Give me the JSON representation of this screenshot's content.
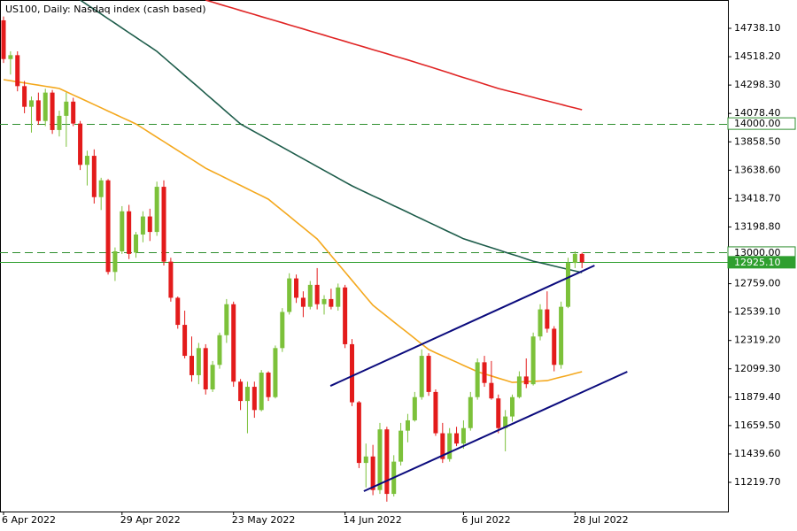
{
  "chart_data": {
    "type": "candlestick",
    "title": "US100, Daily:  Nasdaq index (cash based)",
    "categories": [
      "6 Apr 2022",
      null,
      null,
      null,
      null,
      null,
      null,
      null,
      null,
      null,
      null,
      null,
      null,
      null,
      null,
      null,
      null,
      "29 Apr 2022",
      null,
      null,
      null,
      null,
      null,
      null,
      null,
      null,
      null,
      null,
      null,
      null,
      null,
      null,
      null,
      "23 May 2022",
      null,
      null,
      null,
      null,
      null,
      null,
      null,
      null,
      null,
      null,
      null,
      null,
      null,
      null,
      null,
      "14 Jun 2022",
      null,
      null,
      null,
      null,
      null,
      null,
      null,
      null,
      null,
      null,
      null,
      null,
      null,
      null,
      null,
      null,
      "6 Jul 2022",
      null,
      null,
      null,
      null,
      null,
      null,
      null,
      null,
      null,
      null,
      null,
      null,
      null,
      null,
      null,
      "28 Jul 2022",
      null
    ],
    "open": [
      14800,
      14500,
      14530,
      14290,
      14130,
      14180,
      14020,
      14240,
      13950,
      14060,
      14170,
      14000,
      13680,
      13750,
      13430,
      13560,
      12850,
      13010,
      13320,
      13000,
      13140,
      13280,
      13160,
      13510,
      12930,
      12650,
      12440,
      12200,
      12050,
      12260,
      11940,
      12130,
      12360,
      12600,
      12000,
      11850,
      11960,
      11780,
      12070,
      11880,
      12260,
      12540,
      12800,
      12650,
      12580,
      12750,
      12600,
      12640,
      12580,
      12730,
      12290,
      11840,
      11370,
      11420,
      11160,
      11630,
      11130,
      11380,
      11620,
      11700,
      11880,
      12200,
      11920,
      11600,
      11400,
      11600,
      11520,
      11640,
      11880,
      12150,
      11990,
      11870,
      11640,
      11730,
      11880,
      12040,
      11980,
      12350,
      12560,
      12410,
      12130,
      12580,
      12920,
      12990
    ],
    "high": [
      14830,
      14560,
      14560,
      14330,
      14210,
      14240,
      14270,
      14260,
      14100,
      14240,
      14200,
      14020,
      13790,
      13800,
      13580,
      13570,
      13040,
      13360,
      13370,
      13160,
      13320,
      13340,
      13550,
      13560,
      12960,
      12660,
      12550,
      12350,
      12300,
      12290,
      12160,
      12380,
      12640,
      12620,
      12020,
      12000,
      12000,
      12090,
      12080,
      12280,
      12570,
      12840,
      12830,
      12700,
      12780,
      12880,
      12670,
      12720,
      12760,
      12750,
      12330,
      11850,
      11520,
      11510,
      11680,
      11650,
      11430,
      11680,
      11750,
      11920,
      12250,
      12220,
      11940,
      11680,
      11640,
      11650,
      11700,
      11920,
      12180,
      12200,
      12160,
      11900,
      11780,
      11900,
      12080,
      12180,
      12380,
      12600,
      12700,
      12430,
      12620,
      12960,
      13010,
      13000
    ],
    "low": [
      14470,
      14380,
      14250,
      14080,
      13930,
      13990,
      13980,
      13920,
      13900,
      13820,
      13980,
      13640,
      13520,
      13380,
      13330,
      12830,
      12780,
      12990,
      12950,
      12960,
      13080,
      13090,
      13130,
      12900,
      12620,
      12410,
      12180,
      12000,
      11980,
      11900,
      11920,
      12100,
      12300,
      11960,
      11780,
      11600,
      11720,
      11770,
      11850,
      11870,
      12230,
      12520,
      12610,
      12500,
      12560,
      12560,
      12520,
      12560,
      12550,
      12260,
      11810,
      11330,
      11180,
      11120,
      11130,
      11070,
      11110,
      11350,
      11530,
      11690,
      11860,
      11890,
      11580,
      11370,
      11380,
      11500,
      11480,
      11620,
      11860,
      11960,
      11860,
      11600,
      11460,
      11690,
      11870,
      11950,
      11970,
      12320,
      12380,
      12080,
      12100,
      12570,
      12880,
      12880
    ],
    "close": [
      14500,
      14530,
      14290,
      14130,
      14180,
      14020,
      14240,
      13950,
      14060,
      14170,
      14000,
      13680,
      13750,
      13430,
      13560,
      12850,
      13010,
      13320,
      12990,
      13140,
      13280,
      13160,
      13510,
      12930,
      12650,
      12440,
      12200,
      12050,
      12260,
      11940,
      12130,
      12360,
      12600,
      12000,
      11850,
      11960,
      11780,
      12070,
      11880,
      12260,
      12540,
      12800,
      12650,
      12580,
      12750,
      12600,
      12640,
      12580,
      12730,
      12290,
      11840,
      11370,
      11420,
      11160,
      11630,
      11130,
      11380,
      11620,
      11700,
      11880,
      12200,
      11920,
      11600,
      11400,
      11600,
      11520,
      11640,
      11880,
      12150,
      11990,
      11870,
      11640,
      11730,
      11880,
      12040,
      11980,
      12350,
      12560,
      12410,
      12130,
      12580,
      12920,
      12990,
      12925
    ],
    "up_color": "#7cc13a",
    "down_color": "#e31b1b",
    "series": [
      {
        "color": "#e02424",
        "values": [
          null,
          null,
          null,
          null,
          null,
          null,
          null,
          null,
          null,
          null,
          null,
          null,
          null,
          null,
          null,
          null,
          null,
          null,
          null,
          null,
          null,
          null,
          null,
          null,
          null,
          null,
          null,
          null,
          null,
          14957,
          14941,
          14925,
          14909,
          14893,
          14877,
          14861,
          14845,
          14829,
          14813,
          14797,
          14781,
          14765,
          14749,
          14733,
          14717,
          14701,
          14685,
          14669,
          14653,
          14637,
          14621,
          14605,
          14589,
          14573,
          14557,
          14541,
          14525,
          14509,
          14493,
          14477,
          14460,
          14443,
          14426,
          14409,
          14392,
          14374,
          14357,
          14340,
          14323,
          14306,
          14289,
          14272,
          14258,
          14244,
          14231,
          14217,
          14203,
          14189,
          14176,
          14162,
          14148,
          14134,
          14121,
          14107
        ]
      },
      {
        "color": "#1d5c4a",
        "values": [
          null,
          null,
          null,
          null,
          null,
          null,
          null,
          null,
          null,
          null,
          null,
          14957,
          14921,
          14885,
          14849,
          14813,
          14777,
          14740,
          14704,
          14668,
          14632,
          14596,
          14560,
          14513,
          14466,
          14419,
          14372,
          14326,
          14279,
          14232,
          14185,
          14138,
          14091,
          14044,
          13997,
          13967,
          13937,
          13907,
          13877,
          13847,
          13817,
          13787,
          13757,
          13727,
          13697,
          13667,
          13637,
          13607,
          13577,
          13547,
          13517,
          13491,
          13466,
          13440,
          13415,
          13389,
          13363,
          13338,
          13312,
          13286,
          13261,
          13235,
          13210,
          13184,
          13158,
          13133,
          13107,
          13090,
          13072,
          13055,
          13038,
          13021,
          13003,
          12986,
          12969,
          12951,
          12934,
          12921,
          12909,
          12896,
          12883,
          12870,
          12858,
          12845
        ]
      },
      {
        "color": "#f4a81d",
        "values": [
          14340,
          14332,
          14323,
          14315,
          14306,
          14298,
          14289,
          14281,
          14272,
          14247,
          14222,
          14197,
          14172,
          14147,
          14122,
          14097,
          14072,
          14047,
          14022,
          13997,
          13963,
          13928,
          13894,
          13860,
          13825,
          13791,
          13757,
          13723,
          13688,
          13654,
          13627,
          13601,
          13574,
          13547,
          13521,
          13494,
          13467,
          13441,
          13414,
          13370,
          13326,
          13282,
          13238,
          13194,
          13150,
          13106,
          13042,
          12977,
          12913,
          12849,
          12785,
          12720,
          12656,
          12592,
          12549,
          12506,
          12463,
          12420,
          12378,
          12335,
          12292,
          12249,
          12224,
          12200,
          12175,
          12151,
          12126,
          12102,
          12077,
          12060,
          12044,
          12027,
          12011,
          11994,
          11997,
          12000,
          12002,
          12005,
          12008,
          12022,
          12036,
          12049,
          12063,
          12077
        ]
      }
    ],
    "trendlines": [
      {
        "color": "#0b0b7d",
        "x": [
          46.9,
          84.8
        ],
        "y": [
          11967,
          12900
        ]
      },
      {
        "color": "#0b0b7d",
        "x": [
          51.7,
          89.5
        ],
        "y": [
          11151,
          12077
        ]
      }
    ],
    "levels": [
      {
        "value": 14000,
        "label": "14000.00",
        "dashed": true,
        "color": "#2f8f2f"
      },
      {
        "value": 13000,
        "label": "13000.00",
        "dashed": true,
        "color": "#2f8f2f"
      },
      {
        "value": 12925.1,
        "label": "12925.10",
        "dashed": false,
        "color": "#2f9f2f"
      }
    ],
    "ylim": [
      10993.4,
      14957.6
    ],
    "yticks": [
      {
        "value": 11219.7,
        "label": "11219.70"
      },
      {
        "value": 11439.6,
        "label": "11439.60"
      },
      {
        "value": 11659.5,
        "label": "11659.50"
      },
      {
        "value": 11879.4,
        "label": "11879.40"
      },
      {
        "value": 12099.3,
        "label": "12099.30"
      },
      {
        "value": 12319.2,
        "label": "12319.20"
      },
      {
        "value": 12539.1,
        "label": "12539.10"
      },
      {
        "value": 12759,
        "label": "12759.00"
      },
      {
        "value": 13198.8,
        "label": "13198.80"
      },
      {
        "value": 13418.7,
        "label": "13418.70"
      },
      {
        "value": 13638.6,
        "label": "13638.60"
      },
      {
        "value": 13858.5,
        "label": "13858.50"
      },
      {
        "value": 14078.4,
        "label": "14078.40"
      },
      {
        "value": 14298.3,
        "label": "14298.30"
      },
      {
        "value": 14518.2,
        "label": "14518.20"
      },
      {
        "value": 14738.1,
        "label": "14738.10"
      }
    ]
  }
}
